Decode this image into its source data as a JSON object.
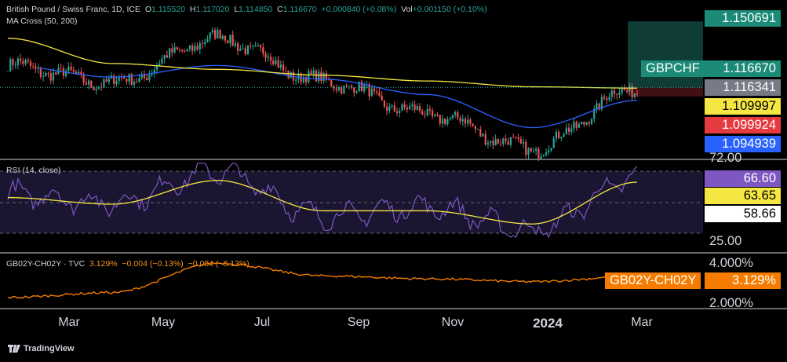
{
  "header": {
    "instrument": "British Pound / Swiss Franc, 1D, ICE",
    "ohlc": {
      "o_label": "O",
      "o": "1.115520",
      "h_label": "H",
      "h": "1.117020",
      "l_label": "L",
      "l": "1.114850",
      "c_label": "C",
      "c": "1.116670",
      "change": "+0.000840 (+0.08%)",
      "vol_label": "Vol",
      "vol": "+0.001150 (+0.10%)"
    },
    "ma_indicator": "MA Cross (50, 200)",
    "rsi_indicator": "RSI (14, close)",
    "sub_indicator": "GB02Y-CH02Y · TVC",
    "sub_values": [
      "3.129%",
      "−0.004 (−0.13%)",
      "−0.004 (−0.13%)"
    ]
  },
  "price_labels": {
    "top": "1.150691",
    "symbol_tag": "GBPCHF",
    "last": "1.116670",
    "ma_a": "1.116341",
    "ma_b": "1.109997",
    "stop": "1.099924",
    "ma_c": "1.094939"
  },
  "rsi_labels": {
    "top": "72.00",
    "v1": "66.60",
    "v2": "63.65",
    "v3": "58.66",
    "bottom": "25.00"
  },
  "sub_labels": {
    "top": "4.000%",
    "tag": "GB02Y-CH02Y",
    "value": "3.129%",
    "bottom": "2.000%"
  },
  "x_labels": [
    "Mar",
    "May",
    "Jul",
    "Sep",
    "Nov",
    "2024",
    "Mar"
  ],
  "branding": "TradingView",
  "colors": {
    "up": "#26a69a",
    "down": "#ef5350",
    "ma50": "#2962ff",
    "ma200": "#f5e642",
    "rsi": "#7e57c2",
    "rsi_ma": "#f5e642",
    "spread": "#f57c00",
    "target": "#1b6f60",
    "stop": "#6b1a22"
  },
  "chart_data": [
    {
      "type": "line",
      "series": [
        {
          "name": "GBPCHF",
          "x": [
            "Mar",
            "May",
            "Jul",
            "Sep",
            "Nov",
            "2024",
            "Mar"
          ],
          "values": [
            1.128,
            1.119,
            1.142,
            1.12,
            1.103,
            1.085,
            1.11667
          ]
        },
        {
          "name": "MA 50",
          "values": [
            1.128,
            1.122,
            1.128,
            1.121,
            1.113,
            1.096,
            1.109997
          ]
        },
        {
          "name": "MA 200",
          "values": [
            1.142,
            1.129,
            1.126,
            1.123,
            1.12,
            1.117,
            1.116341
          ]
        }
      ],
      "ylim": [
        1.0865,
        1.152
      ],
      "annotations": {
        "target": 1.150691,
        "entry": 1.11667,
        "stop": 1.099924
      }
    },
    {
      "type": "line",
      "series": [
        {
          "name": "RSI",
          "values": [
            55,
            48,
            72,
            38,
            45,
            27,
            66.6
          ]
        },
        {
          "name": "RSI MA",
          "values": [
            52,
            47,
            65,
            42,
            42,
            32,
            63.65
          ]
        }
      ],
      "levels": [
        72,
        58.66,
        25
      ]
    },
    {
      "type": "line",
      "series": [
        {
          "name": "GB02Y-CH02Y",
          "values": [
            2.05,
            2.3,
            3.8,
            3.15,
            3.0,
            2.85,
            3.129
          ]
        }
      ],
      "ylim": [
        2.0,
        4.0
      ]
    }
  ]
}
